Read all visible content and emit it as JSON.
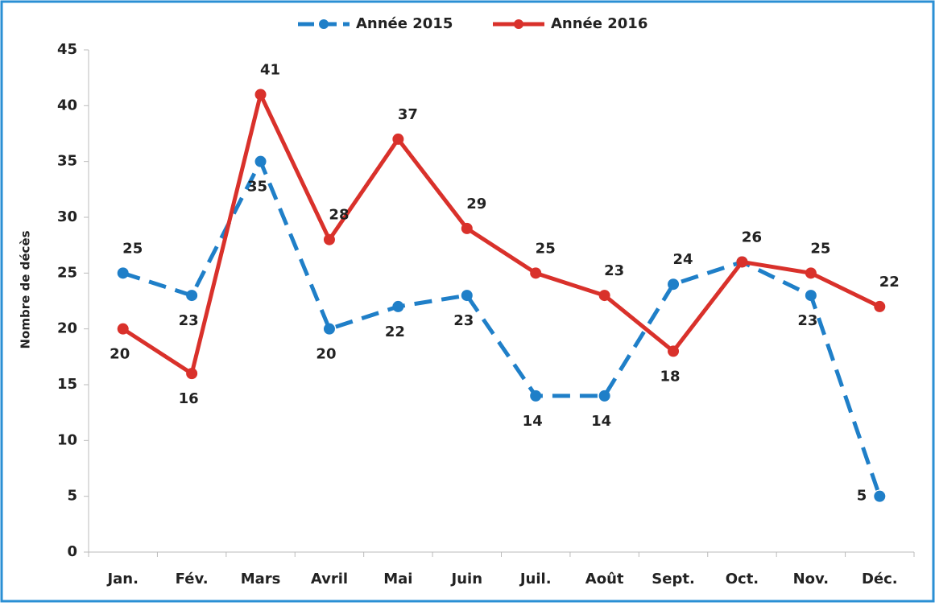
{
  "chart_data": {
    "type": "line",
    "y_label": "Nombre de décès",
    "categories": [
      "Jan.",
      "Fév.",
      "Mars",
      "Avril",
      "Mai",
      "Juin",
      "Juil.",
      "Août",
      "Sept.",
      "Oct.",
      "Nov.",
      "Déc."
    ],
    "series": [
      {
        "name": "Année 2015",
        "color": "#1f7fc8",
        "dashed": true,
        "values": [
          25,
          23,
          35,
          20,
          22,
          23,
          14,
          14,
          24,
          26,
          23,
          5
        ]
      },
      {
        "name": "Année 2016",
        "color": "#d9312b",
        "dashed": false,
        "values": [
          20,
          16,
          41,
          28,
          37,
          29,
          25,
          23,
          18,
          26,
          25,
          22
        ]
      }
    ],
    "ylim": [
      0,
      45
    ],
    "yticks": [
      0,
      5,
      10,
      15,
      20,
      25,
      30,
      35,
      40,
      45
    ],
    "grid": false,
    "legend": "top"
  }
}
